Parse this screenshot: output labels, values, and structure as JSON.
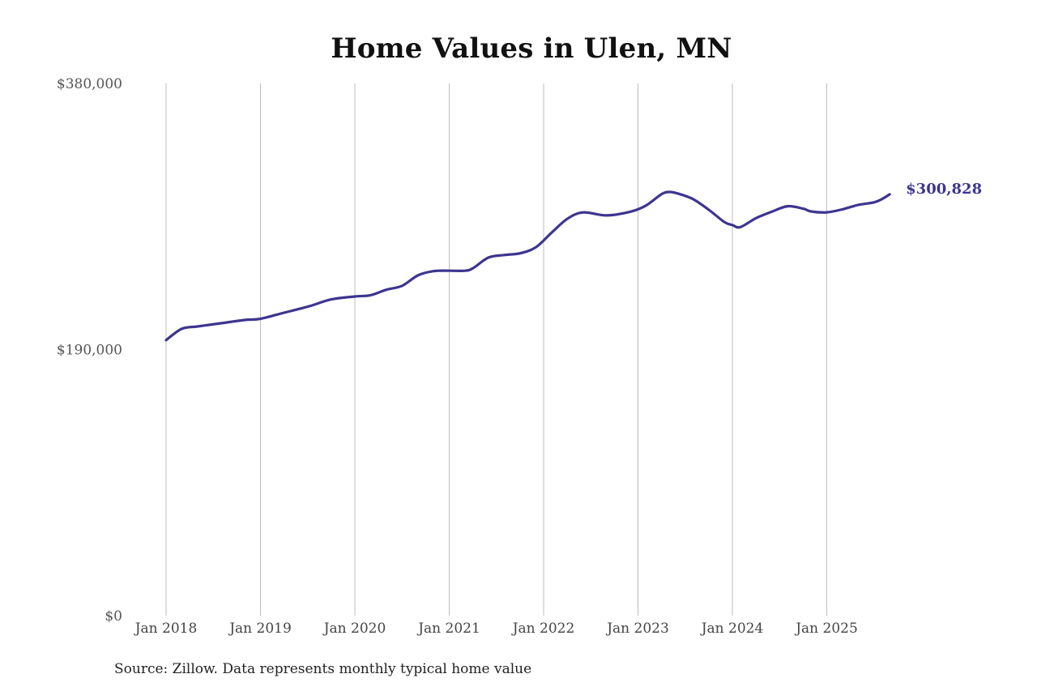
{
  "title": "Home Values in Ulen, MN",
  "source": "Source: Zillow. Data represents monthly typical home value",
  "colors": {
    "line": "#3d3590",
    "grid": "#bdbdbd",
    "label": "#3d3590"
  },
  "chart_data": {
    "type": "line",
    "title": "Home Values in Ulen, MN",
    "xlabel": "",
    "ylabel": "",
    "ylim": [
      0,
      380000
    ],
    "yticks": [
      0,
      190000,
      380000
    ],
    "ytick_labels": [
      "$0",
      "$190,000",
      "$380,000"
    ],
    "xticks": [
      "Jan 2018",
      "Jan 2019",
      "Jan 2020",
      "Jan 2021",
      "Jan 2022",
      "Jan 2023",
      "Jan 2024",
      "Jan 2025"
    ],
    "grid": {
      "vertical": true,
      "horizontal": false
    },
    "legend": null,
    "end_label": "$300,828",
    "series": [
      {
        "name": "Typical home value",
        "x": [
          "2018-01",
          "2018-03",
          "2018-05",
          "2018-08",
          "2018-11",
          "2019-01",
          "2019-04",
          "2019-07",
          "2019-10",
          "2020-01",
          "2020-03",
          "2020-05",
          "2020-07",
          "2020-09",
          "2020-11",
          "2021-01",
          "2021-03",
          "2021-04",
          "2021-06",
          "2021-08",
          "2021-10",
          "2021-12",
          "2022-02",
          "2022-04",
          "2022-06",
          "2022-09",
          "2022-12",
          "2023-02",
          "2023-04",
          "2023-05",
          "2023-06",
          "2023-08",
          "2023-10",
          "2023-12",
          "2024-01",
          "2024-02",
          "2024-04",
          "2024-06",
          "2024-08",
          "2024-10",
          "2024-11",
          "2025-01",
          "2025-03",
          "2025-05",
          "2025-07",
          "2025-08",
          "2025-09"
        ],
        "values": [
          196700,
          204800,
          206500,
          208800,
          211100,
          212000,
          216300,
          220600,
          225800,
          227900,
          228800,
          232700,
          235500,
          242900,
          246000,
          246300,
          246300,
          248000,
          255700,
          257500,
          258700,
          263000,
          273400,
          283300,
          287900,
          285800,
          288400,
          292800,
          301000,
          302500,
          301500,
          297400,
          289800,
          281000,
          278900,
          277400,
          283800,
          288400,
          292300,
          290600,
          288600,
          288000,
          290100,
          293300,
          295100,
          297400,
          300828
        ]
      }
    ]
  }
}
